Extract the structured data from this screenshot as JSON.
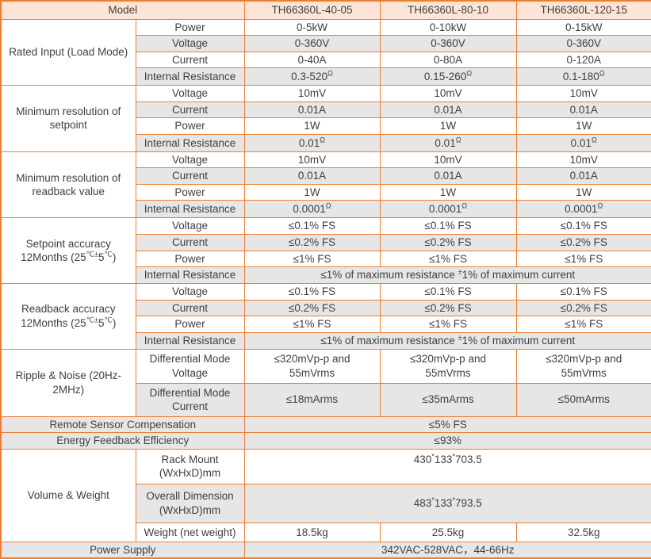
{
  "colors": {
    "border": "#ED7D31",
    "header_bg": "#FCE4D6",
    "alt_row_bg": "#E7E6E6",
    "text": "#3F3F3F",
    "bg": "#FFFFFF"
  },
  "header": {
    "model_label": "Model",
    "models": [
      "TH66360L-40-05",
      "TH66360L-80-10",
      "TH66360L-120-15"
    ]
  },
  "rated_input": {
    "label": "Rated Input (Load Mode)",
    "power": {
      "label": "Power",
      "values": [
        "0-5kW",
        "0-10kW",
        "0-15kW"
      ]
    },
    "voltage": {
      "label": "Voltage",
      "values": [
        "0-360V",
        "0-360V",
        "0-360V"
      ]
    },
    "current": {
      "label": "Current",
      "values": [
        "0-40A",
        "0-80A",
        "0-120A"
      ]
    },
    "internal_resistance": {
      "label": "Internal Resistance",
      "values_runs": [
        [
          {
            "t": "0.3-520"
          },
          {
            "t": "Ω",
            "sup": true
          }
        ],
        [
          {
            "t": "0.15-260"
          },
          {
            "t": "Ω",
            "sup": true
          }
        ],
        [
          {
            "t": "0.1-180"
          },
          {
            "t": "Ω",
            "sup": true
          }
        ]
      ]
    }
  },
  "setpoint_resolution": {
    "label": "Minimum resolution of setpoint",
    "voltage": {
      "label": "Voltage",
      "values": [
        "10mV",
        "10mV",
        "10mV"
      ]
    },
    "current": {
      "label": "Current",
      "values": [
        "0.01A",
        "0.01A",
        "0.01A"
      ]
    },
    "power": {
      "label": "Power",
      "values": [
        "1W",
        "1W",
        "1W"
      ]
    },
    "internal_resistance": {
      "label": "Internal Resistance",
      "values_runs": [
        [
          {
            "t": "0.01"
          },
          {
            "t": "Ω",
            "sup": true
          }
        ],
        [
          {
            "t": "0.01"
          },
          {
            "t": "Ω",
            "sup": true
          }
        ],
        [
          {
            "t": "0.01"
          },
          {
            "t": "Ω",
            "sup": true
          }
        ]
      ]
    }
  },
  "readback_resolution": {
    "label": "Minimum resolution of readback value",
    "voltage": {
      "label": "Voltage",
      "values": [
        "10mV",
        "10mV",
        "10mV"
      ]
    },
    "current": {
      "label": "Current",
      "values": [
        "0.01A",
        "0.01A",
        "0.01A"
      ]
    },
    "power": {
      "label": "Power",
      "values": [
        "1W",
        "1W",
        "1W"
      ]
    },
    "internal_resistance": {
      "label": "Internal Resistance",
      "values_runs": [
        [
          {
            "t": "0.0001"
          },
          {
            "t": "Ω",
            "sup": true
          }
        ],
        [
          {
            "t": "0.0001"
          },
          {
            "t": "Ω",
            "sup": true
          }
        ],
        [
          {
            "t": "0.0001"
          },
          {
            "t": "Ω",
            "sup": true
          }
        ]
      ]
    }
  },
  "setpoint_accuracy": {
    "label_line1": "Setpoint accuracy",
    "label_line2_runs": [
      {
        "t": "12Months (25"
      },
      {
        "t": "℃±",
        "sup": true
      },
      {
        "t": "5"
      },
      {
        "t": "℃",
        "sup": true
      },
      {
        "t": ")"
      }
    ],
    "voltage": {
      "label": "Voltage",
      "values": [
        "≤0.1% FS",
        "≤0.1% FS",
        "≤0.1% FS"
      ]
    },
    "current": {
      "label": "Current",
      "values": [
        "≤0.2% FS",
        "≤0.2% FS",
        "≤0.2% FS"
      ]
    },
    "power": {
      "label": "Power",
      "values": [
        "≤1% FS",
        "≤1% FS",
        "≤1% FS"
      ]
    },
    "internal_resistance": {
      "label": "Internal Resistance",
      "span_runs": [
        {
          "t": "≤1% of maximum resistance "
        },
        {
          "t": "±",
          "sup": true
        },
        {
          "t": "1% of maximum current"
        }
      ]
    }
  },
  "readback_accuracy": {
    "label_line1": "Readback accuracy",
    "label_line2_runs": [
      {
        "t": "12Months (25"
      },
      {
        "t": "℃±",
        "sup": true
      },
      {
        "t": "5"
      },
      {
        "t": "℃",
        "sup": true
      },
      {
        "t": ")"
      }
    ],
    "voltage": {
      "label": "Voltage",
      "values": [
        "≤0.1% FS",
        "≤0.1% FS",
        "≤0.1% FS"
      ]
    },
    "current": {
      "label": "Current",
      "values": [
        "≤0.2% FS",
        "≤0.2% FS",
        "≤0.2% FS"
      ]
    },
    "power": {
      "label": "Power",
      "values": [
        "≤1% FS",
        "≤1% FS",
        "≤1% FS"
      ]
    },
    "internal_resistance": {
      "label": "Internal Resistance",
      "span_runs": [
        {
          "t": "≤1% of maximum resistance "
        },
        {
          "t": "±",
          "sup": true
        },
        {
          "t": "1% of maximum current"
        }
      ]
    }
  },
  "ripple_noise": {
    "label": "Ripple & Noise (20Hz-2MHz)",
    "dm_voltage": {
      "label": "Differential Mode Voltage",
      "values": [
        "≤320mVp-p and 55mVrms",
        "≤320mVp-p and 55mVrms",
        "≤320mVp-p and 55mVrms"
      ]
    },
    "dm_current": {
      "label": "Differential Mode Current",
      "values": [
        "≤18mArms",
        "≤35mArms",
        "≤50mArms"
      ]
    }
  },
  "remote_sensor": {
    "label": "Remote Sensor Compensation",
    "value": "≤5% FS"
  },
  "energy_feedback": {
    "label": "Energy Feedback Efficiency",
    "value": "≤93%"
  },
  "volume_weight": {
    "label": "Volume & Weight",
    "rack_mount": {
      "label": "Rack Mount (WxHxD)mm",
      "value_runs": [
        {
          "t": "430"
        },
        {
          "t": "*",
          "sup": true
        },
        {
          "t": "133"
        },
        {
          "t": "*",
          "sup": true
        },
        {
          "t": "703.5"
        }
      ]
    },
    "overall_dimension": {
      "label": "Overall Dimension (WxHxD)mm",
      "value_runs": [
        {
          "t": "483"
        },
        {
          "t": "*",
          "sup": true
        },
        {
          "t": "133"
        },
        {
          "t": "*",
          "sup": true
        },
        {
          "t": "793.5"
        }
      ]
    },
    "weight": {
      "label": "Weight (net weight)",
      "values": [
        "18.5kg",
        "25.5kg",
        "32.5kg"
      ]
    }
  },
  "power_supply": {
    "label": "Power Supply",
    "value": "342VAC-528VAC，44-66Hz"
  }
}
